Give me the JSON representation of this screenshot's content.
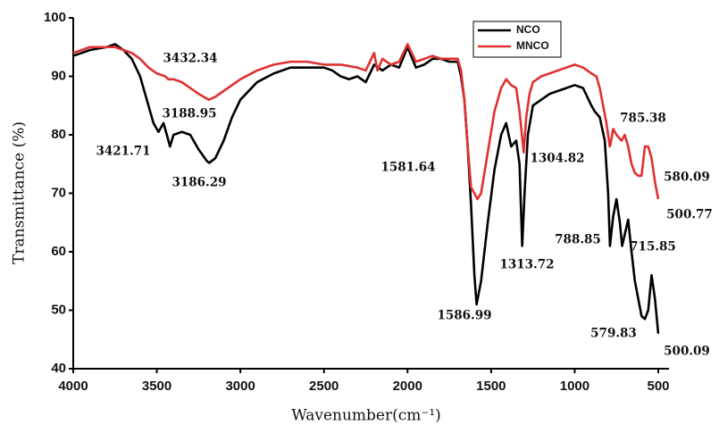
{
  "chart_data": {
    "type": "line",
    "xlabel": "Wavenumber(cm⁻¹)",
    "ylabel": "Transmittance (%)",
    "xlim": [
      4000,
      500
    ],
    "ylim": [
      40,
      100
    ],
    "xticks": [
      4000,
      3500,
      3000,
      2500,
      2000,
      1500,
      1000,
      500
    ],
    "yticks": [
      40,
      50,
      60,
      70,
      80,
      90,
      100
    ],
    "legend": "upper right",
    "annotations": [
      "3432.34",
      "3188.95",
      "3421.71",
      "3186.29",
      "1581.64",
      "1304.82",
      "785.38",
      "580.09",
      "500.77",
      "788.85",
      "715.85",
      "1313.72",
      "1586.99",
      "579.83",
      "500.09"
    ],
    "series": [
      {
        "name": "NCO",
        "color": "#000000",
        "x": [
          4000,
          3900,
          3800,
          3750,
          3700,
          3650,
          3600,
          3560,
          3520,
          3490,
          3460,
          3440,
          3421,
          3400,
          3350,
          3300,
          3250,
          3200,
          3186,
          3150,
          3100,
          3050,
          3000,
          2900,
          2800,
          2700,
          2600,
          2500,
          2450,
          2400,
          2350,
          2300,
          2250,
          2200,
          2150,
          2100,
          2050,
          2000,
          1950,
          1900,
          1850,
          1800,
          1750,
          1700,
          1680,
          1660,
          1640,
          1620,
          1600,
          1587,
          1560,
          1520,
          1480,
          1440,
          1410,
          1380,
          1350,
          1330,
          1314,
          1300,
          1280,
          1250,
          1200,
          1150,
          1100,
          1050,
          1000,
          950,
          900,
          880,
          850,
          820,
          800,
          789,
          770,
          750,
          730,
          716,
          700,
          680,
          660,
          640,
          620,
          600,
          580,
          560,
          540,
          520,
          500
        ],
        "values": [
          93.5,
          94.5,
          95,
          95.5,
          94.5,
          93,
          90,
          86,
          82,
          80.5,
          82,
          80,
          78,
          80,
          80.5,
          80,
          77.5,
          75.5,
          75.2,
          76,
          79,
          83,
          86,
          89,
          90.5,
          91.5,
          91.5,
          91.5,
          91,
          90,
          89.5,
          90,
          89,
          92,
          91,
          92,
          91.5,
          95,
          91.5,
          92,
          93,
          93,
          92.5,
          92.5,
          90,
          86,
          78,
          68,
          56,
          51,
          55,
          65,
          74,
          80,
          82,
          78,
          79,
          75,
          61,
          70,
          80,
          85,
          86,
          87,
          87.5,
          88,
          88.5,
          88,
          85,
          84,
          83,
          79,
          70,
          61,
          66,
          69,
          65,
          61,
          63,
          65.5,
          60,
          55,
          52,
          49,
          48.5,
          50,
          56,
          52,
          46
        ]
      },
      {
        "name": "MNCO",
        "color": "#e03030",
        "x": [
          4000,
          3900,
          3800,
          3750,
          3700,
          3650,
          3600,
          3550,
          3500,
          3450,
          3432,
          3400,
          3350,
          3300,
          3250,
          3189,
          3150,
          3100,
          3000,
          2900,
          2800,
          2700,
          2600,
          2500,
          2400,
          2300,
          2250,
          2200,
          2180,
          2150,
          2100,
          2050,
          2000,
          1950,
          1900,
          1850,
          1800,
          1750,
          1700,
          1680,
          1660,
          1640,
          1620,
          1600,
          1582,
          1560,
          1520,
          1480,
          1440,
          1410,
          1380,
          1350,
          1330,
          1305,
          1290,
          1270,
          1250,
          1200,
          1100,
          1050,
          1000,
          950,
          900,
          870,
          850,
          830,
          810,
          790,
          785,
          770,
          750,
          720,
          700,
          680,
          660,
          640,
          620,
          600,
          580,
          560,
          540,
          520,
          500
        ],
        "values": [
          94,
          95,
          95,
          95,
          94.5,
          94,
          93,
          91.5,
          90.5,
          90,
          89.5,
          89.5,
          89,
          88,
          87,
          86,
          86.5,
          87.5,
          89.5,
          91,
          92,
          92.5,
          92.5,
          92,
          92,
          91.5,
          91,
          94,
          91,
          93,
          92,
          92.5,
          95.5,
          92.5,
          93,
          93.5,
          93,
          93,
          93,
          91,
          86,
          78,
          71,
          70,
          69,
          70,
          77,
          84,
          88,
          89.5,
          88.5,
          88,
          84,
          77,
          83,
          87,
          89,
          90,
          91,
          91.5,
          92,
          91.5,
          90.5,
          90,
          88,
          85,
          82,
          78,
          78.5,
          81,
          80,
          79,
          80,
          78,
          75,
          73.5,
          73,
          73,
          78,
          78,
          76,
          72,
          69
        ]
      }
    ]
  }
}
